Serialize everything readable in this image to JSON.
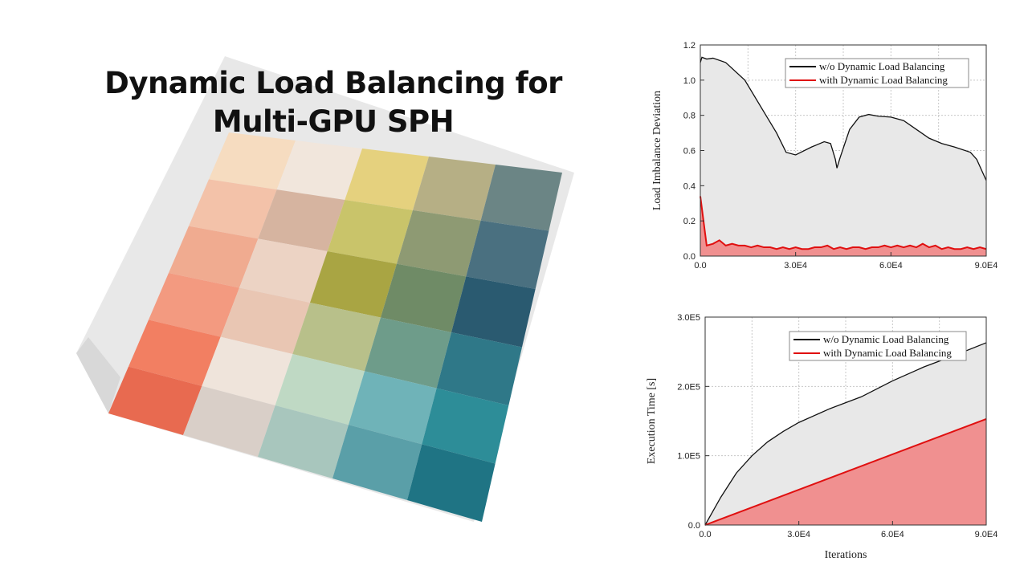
{
  "title": {
    "line1": "Dynamic Load Balancing for",
    "line2": "Multi-GPU SPH"
  },
  "render": {
    "description_colors": {
      "box": "#e6e6e6",
      "columns": [
        [
          "#f6dcc0",
          "#f3c2a9",
          "#f0ab90",
          "#f39a80",
          "#f27f62",
          "#e86a50"
        ],
        [
          "#f1e6dc",
          "#d6b4a0",
          "#ecd3c4",
          "#e9c6b3",
          "#efe4db",
          "#d9cfc8"
        ],
        [
          "#e5d17e",
          "#c9c46a",
          "#a9a543",
          "#b8c08a",
          "#bfd9c4",
          "#a8c6bd"
        ],
        [
          "#b6af85",
          "#8e9a73",
          "#6f8b66",
          "#6e9c8a",
          "#6fb3b8",
          "#5a9fa8"
        ],
        [
          "#6b8585",
          "#4a7080",
          "#2a5a70",
          "#2f7888",
          "#2d8d98",
          "#1f7484"
        ]
      ]
    }
  },
  "chart_data": [
    {
      "type": "area",
      "title": "",
      "xlabel": "",
      "ylabel": "Load Imbalance Deviation",
      "xlim": [
        0,
        90000
      ],
      "ylim": [
        0,
        1.2
      ],
      "xticks": [
        0,
        30000,
        60000,
        90000
      ],
      "xtick_labels": [
        "0.0",
        "3.0E4",
        "6.0E4",
        "9.0E4"
      ],
      "yticks": [
        0,
        0.2,
        0.4,
        0.6,
        0.8,
        1.0,
        1.2
      ],
      "ytick_labels": [
        "0.0",
        "0.2",
        "0.4",
        "0.6",
        "0.8",
        "1.0",
        "1.2"
      ],
      "grid": true,
      "legend": "top-right",
      "series": [
        {
          "name": "w/o Dynamic Load Balancing",
          "color": "#111111",
          "fill": "#e8e8e8",
          "x": [
            0,
            500,
            2000,
            4000,
            8000,
            14000,
            20000,
            24000,
            27000,
            30000,
            35000,
            39000,
            41000,
            42500,
            43000,
            44000,
            47000,
            50000,
            53000,
            56000,
            60000,
            64000,
            68000,
            72000,
            76000,
            80000,
            85000,
            87000,
            90000
          ],
          "y": [
            1.1,
            1.13,
            1.12,
            1.125,
            1.1,
            1.0,
            0.82,
            0.7,
            0.59,
            0.575,
            0.62,
            0.65,
            0.64,
            0.55,
            0.5,
            0.56,
            0.72,
            0.79,
            0.805,
            0.795,
            0.79,
            0.77,
            0.72,
            0.67,
            0.64,
            0.62,
            0.59,
            0.55,
            0.43
          ]
        },
        {
          "name": "with Dynamic Load Balancing",
          "color": "#e01010",
          "fill": "#f09090",
          "x": [
            0,
            2000,
            4000,
            6000,
            8000,
            10000,
            12000,
            14000,
            16000,
            18000,
            20000,
            22000,
            24000,
            26000,
            28000,
            30000,
            32000,
            34000,
            36000,
            38000,
            40000,
            42000,
            44000,
            46000,
            48000,
            50000,
            52000,
            54000,
            56000,
            58000,
            60000,
            62000,
            64000,
            66000,
            68000,
            70000,
            72000,
            74000,
            76000,
            78000,
            80000,
            82000,
            84000,
            86000,
            88000,
            90000
          ],
          "y": [
            0.34,
            0.06,
            0.07,
            0.09,
            0.06,
            0.07,
            0.06,
            0.06,
            0.05,
            0.06,
            0.05,
            0.05,
            0.04,
            0.05,
            0.04,
            0.05,
            0.04,
            0.04,
            0.05,
            0.05,
            0.06,
            0.04,
            0.05,
            0.04,
            0.05,
            0.05,
            0.04,
            0.05,
            0.05,
            0.06,
            0.05,
            0.06,
            0.05,
            0.06,
            0.05,
            0.07,
            0.05,
            0.06,
            0.04,
            0.05,
            0.04,
            0.04,
            0.05,
            0.04,
            0.05,
            0.04
          ]
        }
      ]
    },
    {
      "type": "area",
      "title": "",
      "xlabel": "Iterations",
      "ylabel": "Execution Time [s]",
      "xlim": [
        0,
        90000
      ],
      "ylim": [
        0,
        300000
      ],
      "xticks": [
        0,
        30000,
        60000,
        90000
      ],
      "xtick_labels": [
        "0.0",
        "3.0E4",
        "6.0E4",
        "9.0E4"
      ],
      "yticks": [
        0,
        100000,
        200000,
        300000
      ],
      "ytick_labels": [
        "0.0",
        "1.0E5",
        "2.0E5",
        "3.0E5"
      ],
      "grid": true,
      "legend": "top-right",
      "series": [
        {
          "name": "w/o Dynamic Load Balancing",
          "color": "#111111",
          "fill": "#e8e8e8",
          "x": [
            0,
            5000,
            10000,
            15000,
            20000,
            25000,
            30000,
            40000,
            50000,
            60000,
            70000,
            80000,
            90000
          ],
          "y": [
            0,
            40000,
            75000,
            100000,
            120000,
            135000,
            148000,
            168000,
            185000,
            208000,
            228000,
            245000,
            263000
          ]
        },
        {
          "name": "with Dynamic Load Balancing",
          "color": "#e01010",
          "fill": "#f09090",
          "x": [
            0,
            90000
          ],
          "y": [
            0,
            153000
          ]
        }
      ]
    }
  ]
}
